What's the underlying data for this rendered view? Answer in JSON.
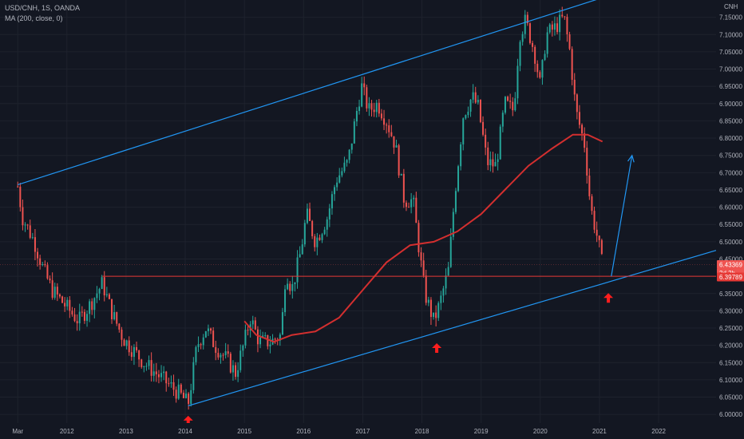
{
  "legend": {
    "symbol": "USD/CNH, 1S, OANDA",
    "indicator": "MA (200, close, 0)"
  },
  "colors": {
    "background": "#131722",
    "grid": "#1e222d",
    "up": "#26a69a",
    "down": "#ef5350",
    "ma": "#d32f2f",
    "channel": "#2196f3",
    "support": "#e53935",
    "axis_text": "#b2b5be"
  },
  "chart_data": {
    "type": "candlestick",
    "y_axis": {
      "currency": "CNH",
      "ticks": [
        "6.00000",
        "6.05000",
        "6.10000",
        "6.15000",
        "6.20000",
        "6.25000",
        "6.30000",
        "6.35000",
        "6.40000",
        "6.45000",
        "6.50000",
        "6.55000",
        "6.60000",
        "6.65000",
        "6.70000",
        "6.75000",
        "6.80000",
        "6.85000",
        "6.90000",
        "6.95000",
        "7.00000",
        "7.05000",
        "7.10000",
        "7.15000"
      ],
      "range": [
        5.975,
        7.2
      ]
    },
    "x_axis": {
      "ticks": [
        "Mar",
        "2012",
        "2013",
        "2014",
        "2015",
        "2016",
        "2017",
        "2018",
        "2019",
        "2020",
        "2021",
        "2022"
      ],
      "tick_years": [
        2011.17,
        2012,
        2013,
        2014,
        2015,
        2016,
        2017,
        2018,
        2019,
        2020,
        2021,
        2022
      ],
      "range": [
        2010.87,
        2022.97
      ]
    },
    "price_labels": [
      {
        "text": "6.43369",
        "value": 6.43369,
        "color": "#ef5350"
      },
      {
        "text": "3d 3h",
        "value": 6.41,
        "color": "#ef5350"
      },
      {
        "text": "6.39789",
        "value": 6.39789,
        "color": "#e53935"
      }
    ],
    "price_path": [
      [
        2011.17,
        6.66
      ],
      [
        2011.25,
        6.57
      ],
      [
        2011.45,
        6.5
      ],
      [
        2011.6,
        6.42
      ],
      [
        2011.75,
        6.36
      ],
      [
        2011.9,
        6.33
      ],
      [
        2012.05,
        6.3
      ],
      [
        2012.2,
        6.27
      ],
      [
        2012.4,
        6.32
      ],
      [
        2012.6,
        6.38
      ],
      [
        2012.75,
        6.3
      ],
      [
        2012.95,
        6.22
      ],
      [
        2013.1,
        6.19
      ],
      [
        2013.3,
        6.15
      ],
      [
        2013.5,
        6.12
      ],
      [
        2013.7,
        6.09
      ],
      [
        2013.9,
        6.06
      ],
      [
        2014.05,
        6.03
      ],
      [
        2014.2,
        6.2
      ],
      [
        2014.35,
        6.25
      ],
      [
        2014.5,
        6.2
      ],
      [
        2014.7,
        6.16
      ],
      [
        2014.85,
        6.12
      ],
      [
        2015.0,
        6.21
      ],
      [
        2015.1,
        6.28
      ],
      [
        2015.25,
        6.21
      ],
      [
        2015.45,
        6.21
      ],
      [
        2015.62,
        6.23
      ],
      [
        2015.7,
        6.42
      ],
      [
        2015.8,
        6.36
      ],
      [
        2015.95,
        6.47
      ],
      [
        2016.05,
        6.58
      ],
      [
        2016.2,
        6.5
      ],
      [
        2016.4,
        6.57
      ],
      [
        2016.55,
        6.68
      ],
      [
        2016.75,
        6.73
      ],
      [
        2016.9,
        6.88
      ],
      [
        2016.98,
        6.95
      ],
      [
        2017.1,
        6.88
      ],
      [
        2017.25,
        6.9
      ],
      [
        2017.4,
        6.85
      ],
      [
        2017.55,
        6.78
      ],
      [
        2017.7,
        6.62
      ],
      [
        2017.85,
        6.62
      ],
      [
        2017.95,
        6.48
      ],
      [
        2018.05,
        6.35
      ],
      [
        2018.2,
        6.27
      ],
      [
        2018.3,
        6.32
      ],
      [
        2018.45,
        6.42
      ],
      [
        2018.55,
        6.63
      ],
      [
        2018.7,
        6.87
      ],
      [
        2018.85,
        6.92
      ],
      [
        2018.95,
        6.89
      ],
      [
        2019.1,
        6.73
      ],
      [
        2019.25,
        6.72
      ],
      [
        2019.4,
        6.9
      ],
      [
        2019.55,
        6.88
      ],
      [
        2019.65,
        7.1
      ],
      [
        2019.75,
        7.14
      ],
      [
        2019.9,
        7.05
      ],
      [
        2020.0,
        6.95
      ],
      [
        2020.1,
        7.1
      ],
      [
        2020.25,
        7.12
      ],
      [
        2020.4,
        7.15
      ],
      [
        2020.5,
        7.05
      ],
      [
        2020.6,
        6.88
      ],
      [
        2020.75,
        6.78
      ],
      [
        2020.85,
        6.6
      ],
      [
        2020.98,
        6.5
      ],
      [
        2021.05,
        6.43
      ]
    ],
    "ma_path": [
      [
        2015.0,
        6.27
      ],
      [
        2015.2,
        6.23
      ],
      [
        2015.5,
        6.21
      ],
      [
        2015.8,
        6.23
      ],
      [
        2016.2,
        6.24
      ],
      [
        2016.6,
        6.28
      ],
      [
        2017.0,
        6.36
      ],
      [
        2017.4,
        6.44
      ],
      [
        2017.8,
        6.49
      ],
      [
        2018.2,
        6.5
      ],
      [
        2018.6,
        6.53
      ],
      [
        2019.0,
        6.58
      ],
      [
        2019.4,
        6.65
      ],
      [
        2019.8,
        6.72
      ],
      [
        2020.2,
        6.77
      ],
      [
        2020.55,
        6.81
      ],
      [
        2020.8,
        6.81
      ],
      [
        2021.05,
        6.79
      ]
    ],
    "annotations": {
      "upper_channel": [
        [
          2011.17,
          6.665
        ],
        [
          2022.75,
          7.3
        ]
      ],
      "lower_channel": [
        [
          2014.05,
          6.025
        ],
        [
          2022.97,
          6.475
        ]
      ],
      "support_line": [
        [
          2012.6,
          6.4
        ],
        [
          2022.97,
          6.4
        ]
      ],
      "arrow_up_projection": [
        [
          2021.2,
          6.4
        ],
        [
          2021.55,
          6.75
        ]
      ],
      "support_markers": [
        [
          2014.05,
          5.98
        ],
        [
          2018.25,
          6.19
        ],
        [
          2021.15,
          6.335
        ]
      ]
    }
  }
}
